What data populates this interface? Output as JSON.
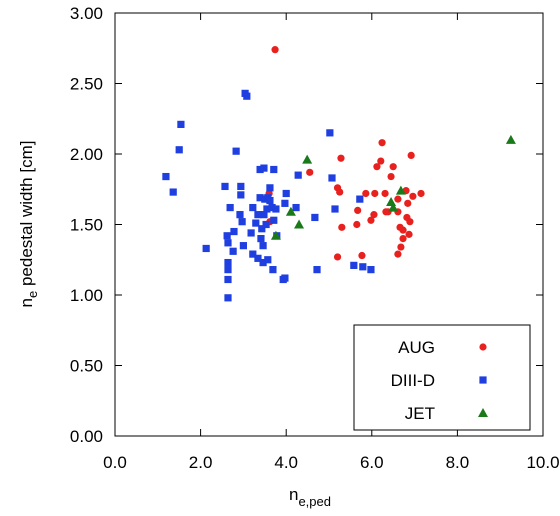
{
  "chart_data": {
    "type": "scatter",
    "xlabel": "n",
    "xlabel_sub": "e,ped",
    "ylabel": "n",
    "ylabel_sub": "e",
    "ylabel_rest": " pedestal width [cm]",
    "xlim": [
      0,
      10
    ],
    "ylim": [
      0,
      3
    ],
    "xticks": [
      {
        "value": 0,
        "label": "0.0"
      },
      {
        "value": 2,
        "label": "2.0"
      },
      {
        "value": 4,
        "label": "4.0"
      },
      {
        "value": 6,
        "label": "6.0"
      },
      {
        "value": 8,
        "label": "8.0"
      },
      {
        "value": 10,
        "label": "10.0"
      }
    ],
    "yticks": [
      {
        "value": 0,
        "label": "0.00"
      },
      {
        "value": 0.5,
        "label": "0.50"
      },
      {
        "value": 1,
        "label": "1.00"
      },
      {
        "value": 1.5,
        "label": "1.50"
      },
      {
        "value": 2,
        "label": "2.00"
      },
      {
        "value": 2.5,
        "label": "2.50"
      },
      {
        "value": 3,
        "label": "3.00"
      }
    ],
    "legend": "lower right",
    "series": [
      {
        "name": "AUG",
        "color": "#e8201e",
        "marker": "circle",
        "x": [
          3.74,
          3.62,
          3.6,
          4.55,
          5.2,
          5.25,
          5.28,
          5.3,
          5.2,
          5.65,
          5.67,
          5.86,
          5.77,
          5.98,
          6.07,
          6.05,
          6.12,
          6.21,
          6.24,
          6.31,
          6.33,
          6.38,
          6.45,
          6.5,
          6.61,
          6.61,
          6.66,
          6.73,
          6.73,
          6.68,
          6.61,
          6.8,
          6.82,
          6.84,
          6.87,
          6.89,
          6.92,
          6.96,
          7.15
        ],
        "values": [
          2.74,
          1.52,
          1.72,
          1.87,
          1.76,
          1.73,
          1.97,
          1.48,
          1.27,
          1.5,
          1.6,
          1.72,
          1.28,
          1.53,
          1.72,
          1.57,
          1.91,
          1.95,
          2.08,
          1.72,
          1.59,
          1.59,
          1.84,
          1.91,
          1.68,
          1.59,
          1.48,
          1.46,
          1.4,
          1.34,
          1.29,
          1.74,
          1.55,
          1.65,
          1.43,
          1.52,
          1.99,
          1.7,
          1.72
        ]
      },
      {
        "name": "DIII-D",
        "color": "#1f3fe0",
        "marker": "square",
        "x": [
          1.19,
          1.36,
          1.5,
          1.54,
          2.13,
          2.57,
          2.62,
          2.64,
          2.64,
          2.64,
          2.64,
          2.64,
          2.69,
          2.76,
          2.78,
          2.83,
          2.92,
          2.94,
          2.94,
          2.97,
          3.0,
          3.04,
          3.08,
          3.18,
          3.22,
          3.22,
          3.29,
          3.34,
          3.34,
          3.39,
          3.39,
          3.41,
          3.43,
          3.46,
          3.46,
          3.48,
          3.48,
          3.5,
          3.53,
          3.55,
          3.57,
          3.57,
          3.62,
          3.62,
          3.67,
          3.69,
          3.71,
          3.71,
          3.76,
          3.78,
          3.93,
          3.97,
          3.97,
          4.0,
          4.23,
          4.28,
          4.67,
          4.72,
          5.02,
          5.07,
          5.14,
          5.58,
          5.79,
          5.98,
          5.72
        ],
        "values": [
          1.84,
          1.73,
          2.03,
          2.21,
          1.33,
          1.77,
          1.42,
          1.37,
          1.23,
          1.18,
          1.11,
          0.98,
          1.62,
          1.31,
          1.45,
          2.02,
          1.57,
          1.77,
          1.71,
          1.52,
          1.35,
          2.43,
          2.41,
          1.44,
          1.62,
          1.29,
          1.51,
          1.57,
          1.26,
          1.69,
          1.89,
          1.4,
          1.47,
          1.23,
          1.35,
          1.57,
          1.9,
          1.68,
          1.5,
          1.61,
          1.25,
          1.69,
          1.76,
          1.67,
          1.62,
          1.18,
          1.53,
          1.89,
          1.61,
          1.42,
          1.11,
          1.12,
          1.65,
          1.72,
          1.62,
          1.85,
          1.55,
          1.18,
          2.15,
          1.83,
          1.61,
          1.21,
          1.2,
          1.18,
          1.68
        ]
      },
      {
        "name": "JET",
        "color": "#1a7a1a",
        "marker": "triangle",
        "x": [
          3.76,
          4.11,
          4.3,
          4.49,
          6.45,
          6.5,
          6.68,
          9.25
        ],
        "values": [
          1.42,
          1.59,
          1.5,
          1.96,
          1.66,
          1.62,
          1.74,
          2.1
        ]
      }
    ]
  }
}
